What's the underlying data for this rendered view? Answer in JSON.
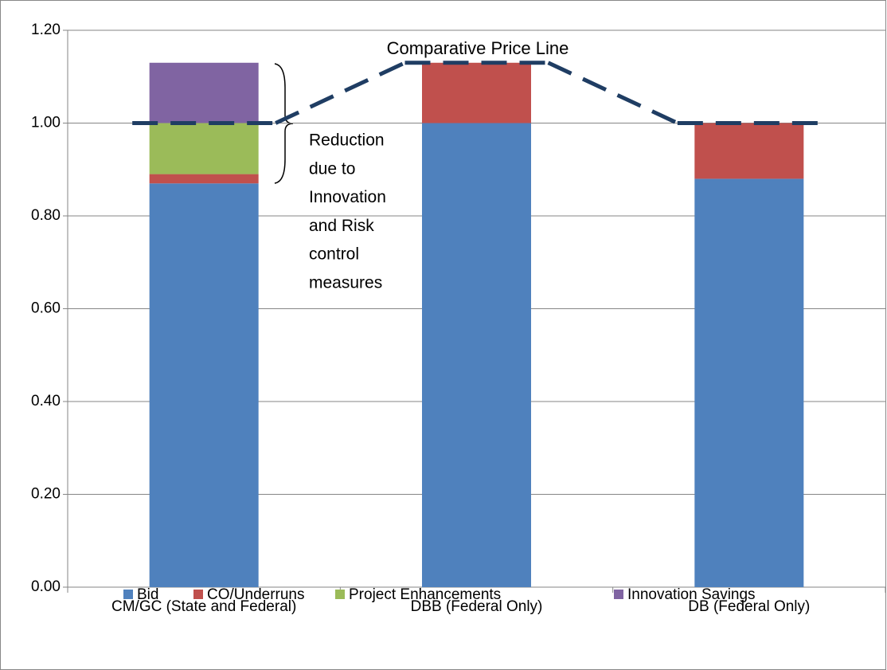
{
  "chart_data": {
    "type": "bar",
    "stacked": true,
    "categories": [
      "CM/GC (State and Federal)",
      "DBB (Federal Only)",
      "DB (Federal Only)"
    ],
    "series": [
      {
        "name": "Bid",
        "color": "#4f81bd",
        "values": [
          0.87,
          1.0,
          0.88
        ]
      },
      {
        "name": "CO/Underruns",
        "color": "#c0504d",
        "values": [
          0.02,
          0.13,
          0.12
        ]
      },
      {
        "name": "Project Enhancements",
        "color": "#9bbb59",
        "values": [
          0.11,
          0,
          0
        ]
      },
      {
        "name": "Innovation Savings",
        "color": "#8064a2",
        "values": [
          0.13,
          0,
          0
        ]
      }
    ],
    "line": {
      "name": "Comparative Price Line",
      "color": "#1f3d63",
      "values": [
        1.0,
        1.13,
        1.0
      ]
    },
    "annotation_lines": [
      "Reduction",
      "due to",
      "Innovation",
      "and Risk",
      "control",
      "measures"
    ],
    "ylim": [
      0,
      1.2
    ],
    "yticks": [
      {
        "value": 0,
        "label": "0.00"
      },
      {
        "value": 0.2,
        "label": "0.20"
      },
      {
        "value": 0.4,
        "label": "0.40"
      },
      {
        "value": 0.6,
        "label": "0.60"
      },
      {
        "value": 0.8,
        "label": "0.80"
      },
      {
        "value": 1.0,
        "label": "1.00"
      },
      {
        "value": 1.2,
        "label": "1.20"
      }
    ],
    "grid": true,
    "legend": "bottom"
  }
}
